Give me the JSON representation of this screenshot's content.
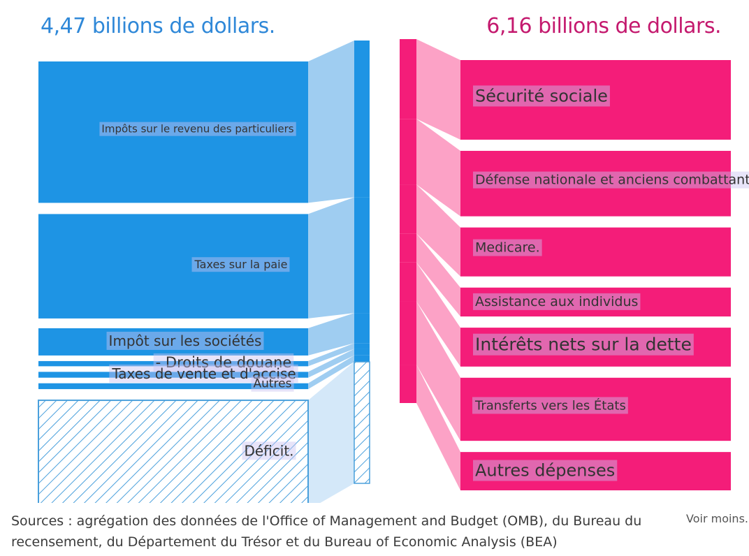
{
  "headline": {
    "receipts_total": "4,47 billions de dollars.",
    "spending_total": "6,16 billions de dollars."
  },
  "colors": {
    "receipts": "#1e94e4",
    "receipts_flow": "#9fcdf1",
    "deficit_hatch": "#4aa0dc",
    "spending": "#f41d79",
    "spending_flow": "#fca2c6",
    "label_highlight": "#c9c3f2"
  },
  "chart_data": {
    "type": "sankey",
    "title": "",
    "receipts": {
      "name": "",
      "total_label": "4,47 billions de dollars.",
      "categories": [
        "Impôts sur le revenu des particuliers",
        "Taxes sur la paie",
        "Impôt sur les sociétés",
        "- Droits de douane",
        "Taxes de vente et d'accise",
        "Autres",
        "Déficit."
      ],
      "values": [
        2.18,
        1.61,
        0.42,
        0.08,
        0.09,
        0.09,
        1.69
      ],
      "hatched": [
        false,
        false,
        false,
        false,
        false,
        false,
        true
      ]
    },
    "spending": {
      "name": "",
      "total_label": "6,16 billions de dollars.",
      "categories": [
        "Sécurité sociale",
        "Défense nationale et anciens combattants",
        "Medicare.",
        "Assistance aux individus",
        "Intérêts nets sur la dette",
        "Transferts vers les États",
        "Autres dépenses"
      ],
      "values": [
        1.35,
        1.11,
        0.83,
        0.49,
        0.66,
        1.07,
        0.65
      ]
    }
  },
  "footer": {
    "sources": "Sources : agrégation des données de l'Office of Management and Budget (OMB), du Bureau du recensement, du Département du Trésor et du Bureau of Economic Analysis (BEA)",
    "toggle_label": "Voir moins."
  }
}
